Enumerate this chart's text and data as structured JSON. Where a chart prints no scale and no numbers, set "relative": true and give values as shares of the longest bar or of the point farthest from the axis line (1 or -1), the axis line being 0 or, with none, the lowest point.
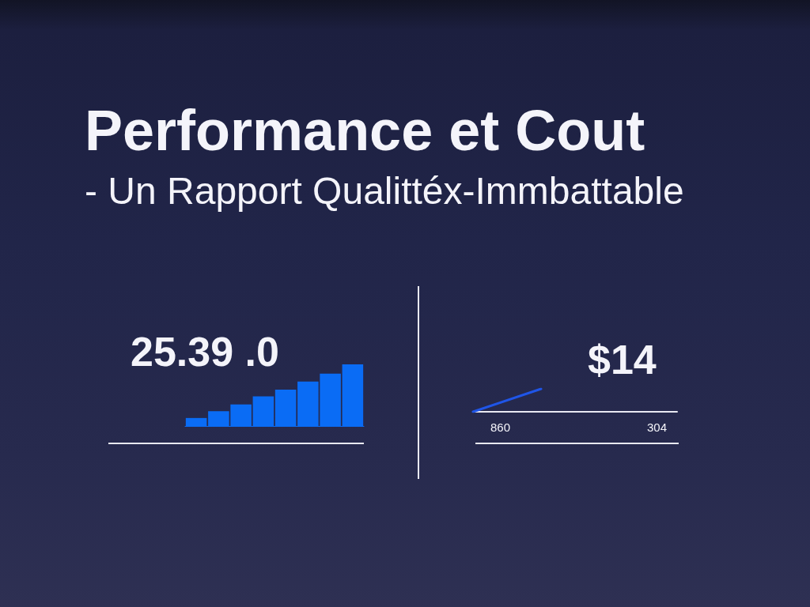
{
  "chart_data": [
    {
      "type": "other",
      "title": "Performance et Cout",
      "subtitle": "- Un Rapport Qualittéx-Immbattable"
    },
    {
      "type": "bar",
      "title": "25.39 .0",
      "relative": true,
      "categories": [
        null,
        null,
        null,
        null,
        null,
        null,
        null,
        null
      ],
      "values": [
        0.13,
        0.24,
        0.35,
        0.48,
        0.59,
        0.72,
        0.85,
        1
      ],
      "color": "#0a6cf5"
    },
    {
      "type": "line",
      "title": "$14",
      "relative": true,
      "categories": [
        null,
        null,
        null,
        null
      ],
      "values": [
        0,
        1,
        null,
        null
      ],
      "color": "#1f55e8",
      "annotations": [
        "860",
        "304"
      ]
    }
  ]
}
